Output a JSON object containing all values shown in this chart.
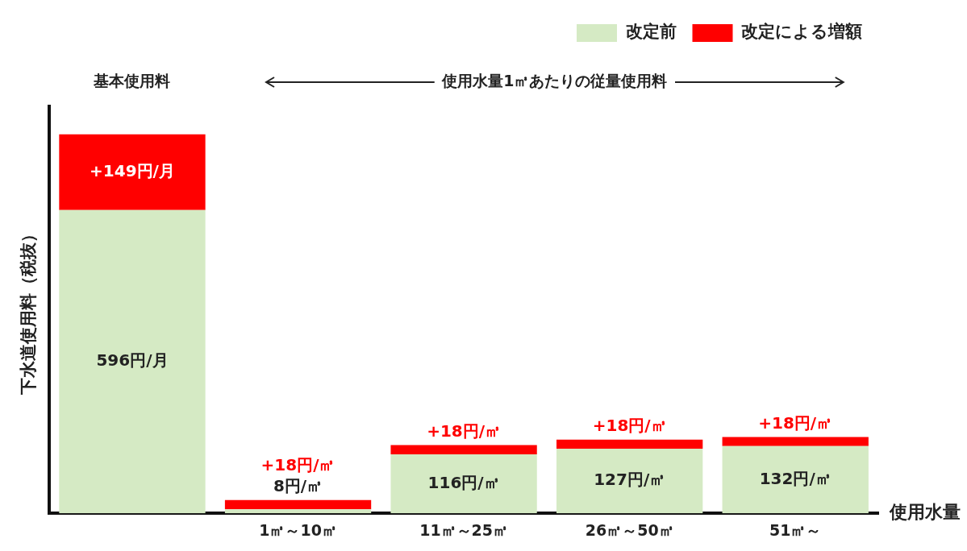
{
  "chart_data": {
    "type": "bar",
    "stacked": true,
    "ylabel": "下水道使用料（税抜）",
    "xlabel": "使用水量",
    "categories": [
      null,
      "1㎥～10㎥",
      "11㎥～25㎥",
      "26㎥～50㎥",
      "51㎥～"
    ],
    "series": [
      {
        "name": "改定前",
        "color": "#d5eac4",
        "values": [
          596,
          8,
          116,
          127,
          132
        ],
        "value_labels": [
          "596円/月",
          "8円/㎥",
          "116円/㎥",
          "127円/㎥",
          "132円/㎥"
        ]
      },
      {
        "name": "改定による増額",
        "color": "#ff0000",
        "values": [
          149,
          18,
          18,
          18,
          18
        ],
        "value_labels": [
          "+149円/月",
          "+18円/㎥",
          "+18円/㎥",
          "+18円/㎥",
          "+18円/㎥"
        ]
      }
    ],
    "annotations": [
      "基本使用料",
      "使用水量1㎥あたりの従量使用料"
    ],
    "legend": "top right",
    "grid": false,
    "tick_labels": "x"
  }
}
